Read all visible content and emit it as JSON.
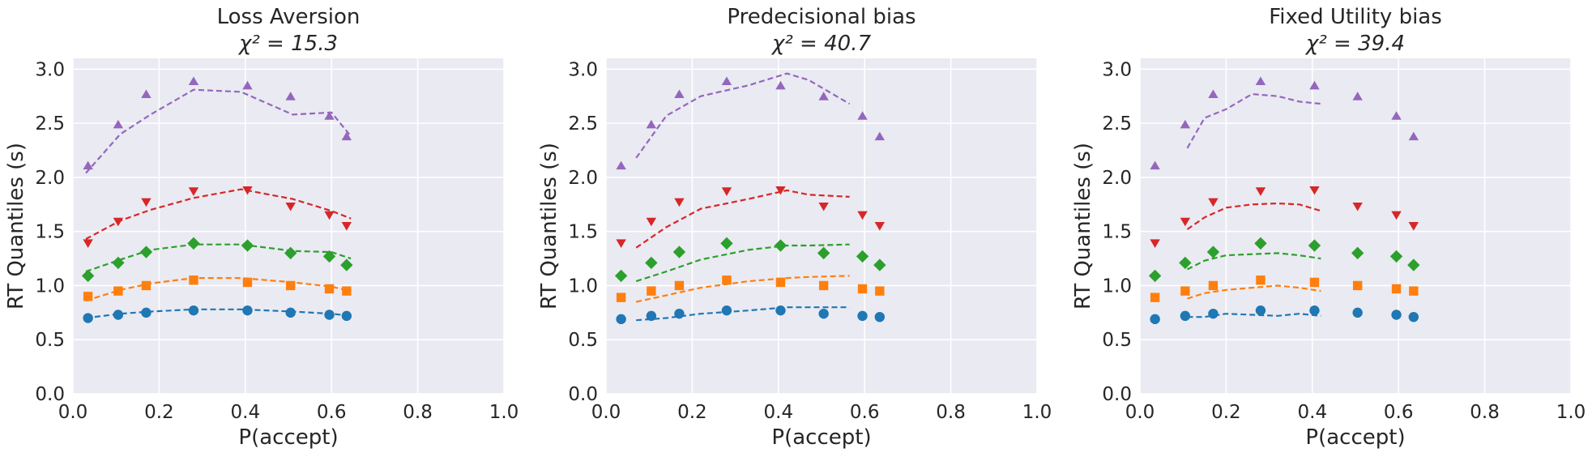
{
  "figure": {
    "background": "#ffffff",
    "panel_background": "#eaeaf2",
    "grid_color": "#ffffff"
  },
  "series_styles": [
    {
      "marker": "circle",
      "color": "#1f77b4"
    },
    {
      "marker": "square",
      "color": "#ff7f0e"
    },
    {
      "marker": "diamond",
      "color": "#2ca02c"
    },
    {
      "marker": "triangle-down",
      "color": "#d62728"
    },
    {
      "marker": "triangle-up",
      "color": "#9467bd"
    }
  ],
  "chart_data": [
    {
      "type": "scatter",
      "title": "Loss Aversion",
      "subtitle": "χ² = 15.3",
      "xlabel": "P(accept)",
      "ylabel": "RT Quantiles (s)",
      "xlim": [
        0.0,
        1.0
      ],
      "ylim": [
        0.0,
        3.1
      ],
      "xticks": [
        "0.0",
        "0.2",
        "0.4",
        "0.6",
        "0.8",
        "1.0"
      ],
      "yticks": [
        "0.0",
        "0.5",
        "1.0",
        "1.5",
        "2.0",
        "2.5",
        "3.0"
      ],
      "grid": true,
      "legend": "none",
      "observed_x": [
        0.035,
        0.105,
        0.17,
        0.28,
        0.405,
        0.505,
        0.595,
        0.635
      ],
      "observed": [
        [
          0.7,
          0.73,
          0.75,
          0.77,
          0.77,
          0.75,
          0.73,
          0.72
        ],
        [
          0.9,
          0.95,
          1.0,
          1.05,
          1.03,
          1.0,
          0.97,
          0.95
        ],
        [
          1.09,
          1.21,
          1.31,
          1.39,
          1.37,
          1.3,
          1.27,
          1.19
        ],
        [
          1.39,
          1.59,
          1.77,
          1.87,
          1.88,
          1.73,
          1.65,
          1.55
        ],
        [
          2.11,
          2.49,
          2.77,
          2.89,
          2.85,
          2.75,
          2.57,
          2.38
        ]
      ],
      "predicted": [
        {
          "x": [
            0.03,
            0.11,
            0.18,
            0.28,
            0.39,
            0.51,
            0.6,
            0.645
          ],
          "y": [
            0.7,
            0.74,
            0.76,
            0.78,
            0.78,
            0.76,
            0.74,
            0.72
          ]
        },
        {
          "x": [
            0.03,
            0.11,
            0.18,
            0.28,
            0.39,
            0.51,
            0.6,
            0.645
          ],
          "y": [
            0.86,
            0.96,
            1.02,
            1.07,
            1.07,
            1.03,
            0.99,
            0.95
          ]
        },
        {
          "x": [
            0.03,
            0.11,
            0.18,
            0.28,
            0.39,
            0.51,
            0.6,
            0.645
          ],
          "y": [
            1.13,
            1.24,
            1.33,
            1.38,
            1.38,
            1.32,
            1.31,
            1.25
          ]
        },
        {
          "x": [
            0.03,
            0.11,
            0.18,
            0.28,
            0.39,
            0.51,
            0.6,
            0.645
          ],
          "y": [
            1.43,
            1.6,
            1.7,
            1.81,
            1.89,
            1.8,
            1.69,
            1.62
          ]
        },
        {
          "x": [
            0.03,
            0.11,
            0.18,
            0.28,
            0.39,
            0.51,
            0.6,
            0.645
          ],
          "y": [
            2.04,
            2.4,
            2.58,
            2.81,
            2.79,
            2.58,
            2.6,
            2.38
          ]
        }
      ]
    },
    {
      "type": "scatter",
      "title": "Predecisional bias",
      "subtitle": "χ² = 40.7",
      "xlabel": "P(accept)",
      "ylabel": "RT Quantiles (s)",
      "xlim": [
        0.0,
        1.0
      ],
      "ylim": [
        0.0,
        3.1
      ],
      "xticks": [
        "0.0",
        "0.2",
        "0.4",
        "0.6",
        "0.8",
        "1.0"
      ],
      "yticks": [
        "0.0",
        "0.5",
        "1.0",
        "1.5",
        "2.0",
        "2.5",
        "3.0"
      ],
      "grid": true,
      "legend": "none",
      "observed_x": [
        0.035,
        0.105,
        0.17,
        0.28,
        0.405,
        0.505,
        0.595,
        0.635
      ],
      "observed": [
        [
          0.69,
          0.72,
          0.74,
          0.77,
          0.77,
          0.74,
          0.72,
          0.71
        ],
        [
          0.89,
          0.95,
          1.0,
          1.05,
          1.03,
          1.0,
          0.97,
          0.95
        ],
        [
          1.09,
          1.21,
          1.31,
          1.39,
          1.37,
          1.3,
          1.27,
          1.19
        ],
        [
          1.39,
          1.59,
          1.77,
          1.87,
          1.88,
          1.73,
          1.65,
          1.55
        ],
        [
          2.11,
          2.49,
          2.77,
          2.89,
          2.85,
          2.75,
          2.57,
          2.38
        ]
      ],
      "predicted": [
        {
          "x": [
            0.07,
            0.14,
            0.22,
            0.33,
            0.42,
            0.47,
            0.565
          ],
          "y": [
            0.68,
            0.7,
            0.74,
            0.77,
            0.8,
            0.8,
            0.8
          ]
        },
        {
          "x": [
            0.07,
            0.14,
            0.22,
            0.33,
            0.42,
            0.47,
            0.565
          ],
          "y": [
            0.85,
            0.91,
            0.98,
            1.04,
            1.07,
            1.08,
            1.09
          ]
        },
        {
          "x": [
            0.07,
            0.14,
            0.22,
            0.33,
            0.42,
            0.47,
            0.565
          ],
          "y": [
            1.04,
            1.13,
            1.24,
            1.33,
            1.37,
            1.37,
            1.38
          ]
        },
        {
          "x": [
            0.07,
            0.14,
            0.22,
            0.33,
            0.42,
            0.47,
            0.565
          ],
          "y": [
            1.35,
            1.54,
            1.71,
            1.8,
            1.88,
            1.84,
            1.82
          ]
        },
        {
          "x": [
            0.07,
            0.14,
            0.22,
            0.33,
            0.42,
            0.47,
            0.565
          ],
          "y": [
            2.18,
            2.57,
            2.75,
            2.85,
            2.96,
            2.9,
            2.68
          ]
        }
      ]
    },
    {
      "type": "scatter",
      "title": "Fixed Utility bias",
      "subtitle": "χ² = 39.4",
      "xlabel": "P(accept)",
      "ylabel": "RT Quantiles (s)",
      "xlim": [
        0.0,
        1.0
      ],
      "ylim": [
        0.0,
        3.1
      ],
      "xticks": [
        "0.0",
        "0.2",
        "0.4",
        "0.6",
        "0.8",
        "1.0"
      ],
      "yticks": [
        "0.0",
        "0.5",
        "1.0",
        "1.5",
        "2.0",
        "2.5",
        "3.0"
      ],
      "grid": true,
      "legend": "none",
      "observed_x": [
        0.035,
        0.105,
        0.17,
        0.28,
        0.405,
        0.505,
        0.595,
        0.635
      ],
      "observed": [
        [
          0.69,
          0.72,
          0.74,
          0.77,
          0.77,
          0.75,
          0.73,
          0.71
        ],
        [
          0.89,
          0.95,
          1.0,
          1.05,
          1.03,
          1.0,
          0.97,
          0.95
        ],
        [
          1.09,
          1.21,
          1.31,
          1.39,
          1.37,
          1.3,
          1.27,
          1.19
        ],
        [
          1.39,
          1.59,
          1.77,
          1.87,
          1.88,
          1.73,
          1.65,
          1.55
        ],
        [
          2.11,
          2.49,
          2.77,
          2.89,
          2.85,
          2.75,
          2.57,
          2.38
        ]
      ],
      "predicted": [
        {
          "x": [
            0.11,
            0.15,
            0.2,
            0.26,
            0.32,
            0.37,
            0.42
          ],
          "y": [
            0.71,
            0.71,
            0.74,
            0.73,
            0.72,
            0.74,
            0.72
          ]
        },
        {
          "x": [
            0.11,
            0.15,
            0.2,
            0.26,
            0.32,
            0.37,
            0.42
          ],
          "y": [
            0.88,
            0.93,
            0.96,
            0.98,
            1.0,
            0.98,
            0.95
          ]
        },
        {
          "x": [
            0.11,
            0.15,
            0.2,
            0.26,
            0.32,
            0.37,
            0.42
          ],
          "y": [
            1.15,
            1.23,
            1.28,
            1.29,
            1.3,
            1.28,
            1.25
          ]
        },
        {
          "x": [
            0.11,
            0.15,
            0.2,
            0.26,
            0.32,
            0.37,
            0.42
          ],
          "y": [
            1.52,
            1.63,
            1.72,
            1.75,
            1.76,
            1.75,
            1.69
          ]
        },
        {
          "x": [
            0.11,
            0.15,
            0.2,
            0.26,
            0.32,
            0.37,
            0.42
          ],
          "y": [
            2.27,
            2.55,
            2.63,
            2.77,
            2.75,
            2.7,
            2.68
          ]
        }
      ]
    }
  ]
}
